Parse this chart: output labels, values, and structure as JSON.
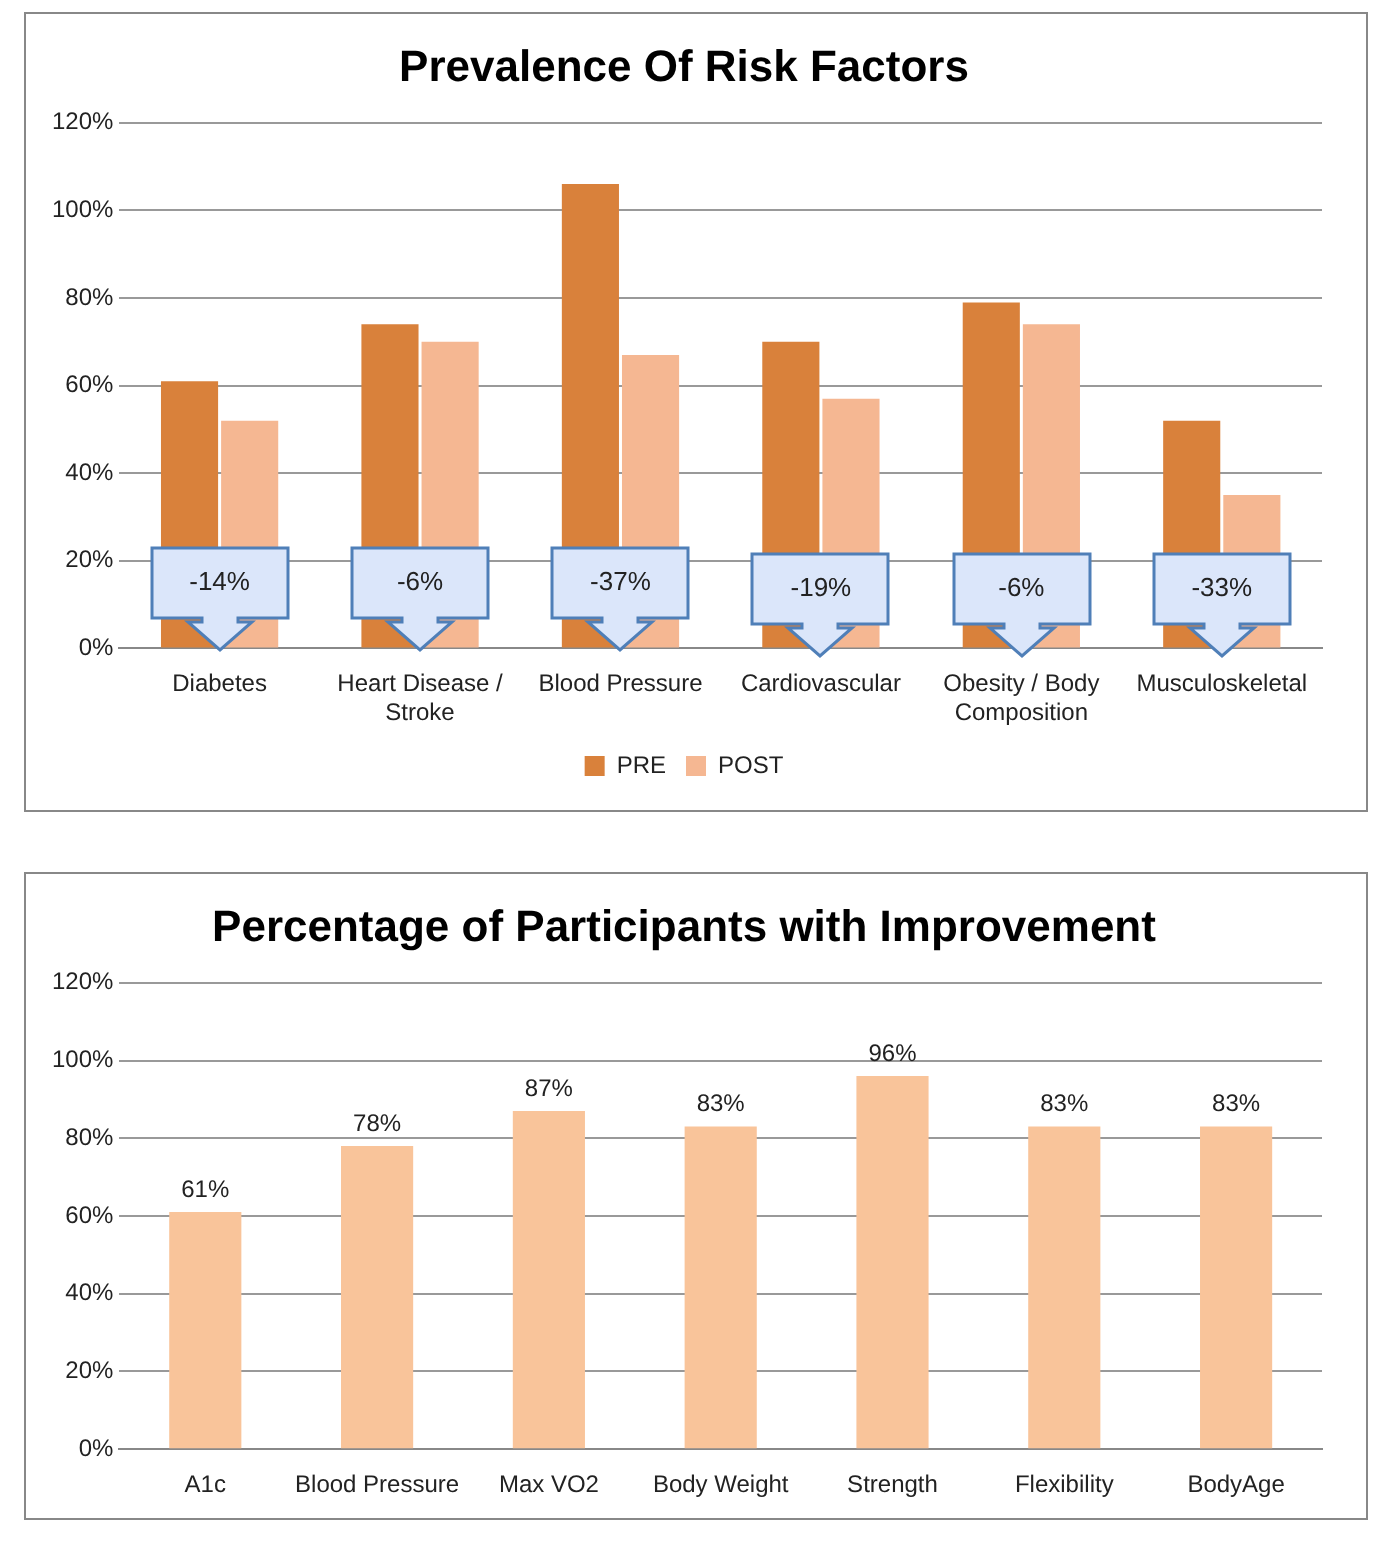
{
  "chart_data": [
    {
      "type": "bar",
      "title": "Prevalence Of Risk Factors",
      "categories": [
        "Diabetes",
        "Heart Disease / Stroke",
        "Blood Pressure",
        "Cardiovascular",
        "Obesity / Body Composition",
        "Musculoskeletal"
      ],
      "series": [
        {
          "name": "PRE",
          "color": "#d9813b",
          "values": [
            61,
            74,
            106,
            70,
            79,
            52
          ]
        },
        {
          "name": "POST",
          "color": "#f5b792",
          "values": [
            52,
            70,
            67,
            57,
            74,
            35
          ]
        }
      ],
      "ylim": [
        0,
        120
      ],
      "yticks": [
        {
          "value": 0,
          "label": "0%"
        },
        {
          "value": 20,
          "label": "20%"
        },
        {
          "value": 40,
          "label": "40%"
        },
        {
          "value": 60,
          "label": "60%"
        },
        {
          "value": 80,
          "label": "80%"
        },
        {
          "value": 100,
          "label": "100%"
        },
        {
          "value": 120,
          "label": "120%"
        }
      ],
      "grid": "y",
      "legend": "bottom",
      "annotations": [
        {
          "text": "-14%",
          "x": "Diabetes",
          "y": 15
        },
        {
          "text": "-6%",
          "x": "Heart Disease / Stroke",
          "y": 15
        },
        {
          "text": "-37%",
          "x": "Blood Pressure",
          "y": 15
        },
        {
          "text": "-19%",
          "x": "Cardiovascular",
          "y": 14
        },
        {
          "text": "-6%",
          "x": "Obesity / Body Composition",
          "y": 14
        },
        {
          "text": "-33%",
          "x": "Musculoskeletal",
          "y": 14
        }
      ]
    },
    {
      "type": "bar",
      "title": "Percentage of Participants with Improvement",
      "categories": [
        "A1c",
        "Blood Pressure",
        "Max VO2",
        "Body Weight",
        "Strength",
        "Flexibility",
        "BodyAge"
      ],
      "values": [
        61,
        78,
        87,
        83,
        96,
        83,
        83
      ],
      "color": "#f9c49a",
      "value_labels": [
        "61%",
        "78%",
        "87%",
        "83%",
        "96%",
        "83%",
        "83%"
      ],
      "ylim": [
        0,
        120
      ],
      "yticks": [
        {
          "value": 0,
          "label": "0%"
        },
        {
          "value": 20,
          "label": "20%"
        },
        {
          "value": 40,
          "label": "40%"
        },
        {
          "value": 60,
          "label": "60%"
        },
        {
          "value": 80,
          "label": "80%"
        },
        {
          "value": 100,
          "label": "100%"
        },
        {
          "value": 120,
          "label": "120%"
        }
      ],
      "grid": "y"
    }
  ]
}
